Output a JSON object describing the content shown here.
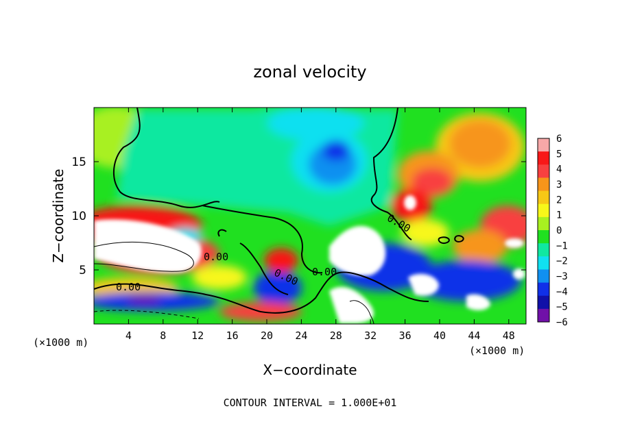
{
  "chart_data": {
    "type": "heatmap",
    "title": "zonal velocity",
    "xlabel": "X−coordinate",
    "ylabel": "Z−coordinate",
    "x_unit_left": "(×1000 m)",
    "x_unit_right": "(×1000 m)",
    "xlim": [
      0,
      50
    ],
    "ylim": [
      0,
      20
    ],
    "x_ticks": [
      4,
      8,
      12,
      16,
      20,
      24,
      28,
      32,
      36,
      40,
      44,
      48
    ],
    "y_ticks": [
      5,
      10,
      15
    ],
    "colorbar": {
      "range": [
        -6,
        6
      ],
      "ticks": [
        "6",
        "5",
        "4",
        "3",
        "2",
        "1",
        "0",
        "−1",
        "−2",
        "−3",
        "−4",
        "−5",
        "−6"
      ],
      "colors": [
        "#f7a8a8",
        "#f81818",
        "#f84040",
        "#f7951a",
        "#f7c816",
        "#f7f71a",
        "#a8f020",
        "#20e020",
        "#10e8a0",
        "#10e0f0",
        "#1090f0",
        "#1030e8",
        "#1010a8",
        "#7010a8"
      ]
    },
    "contour_labels": [
      "0.00",
      "0.00",
      "0.00",
      "0.00",
      "0.00"
    ],
    "contour_interval_text": "CONTOUR INTERVAL = 1.000E+01"
  }
}
